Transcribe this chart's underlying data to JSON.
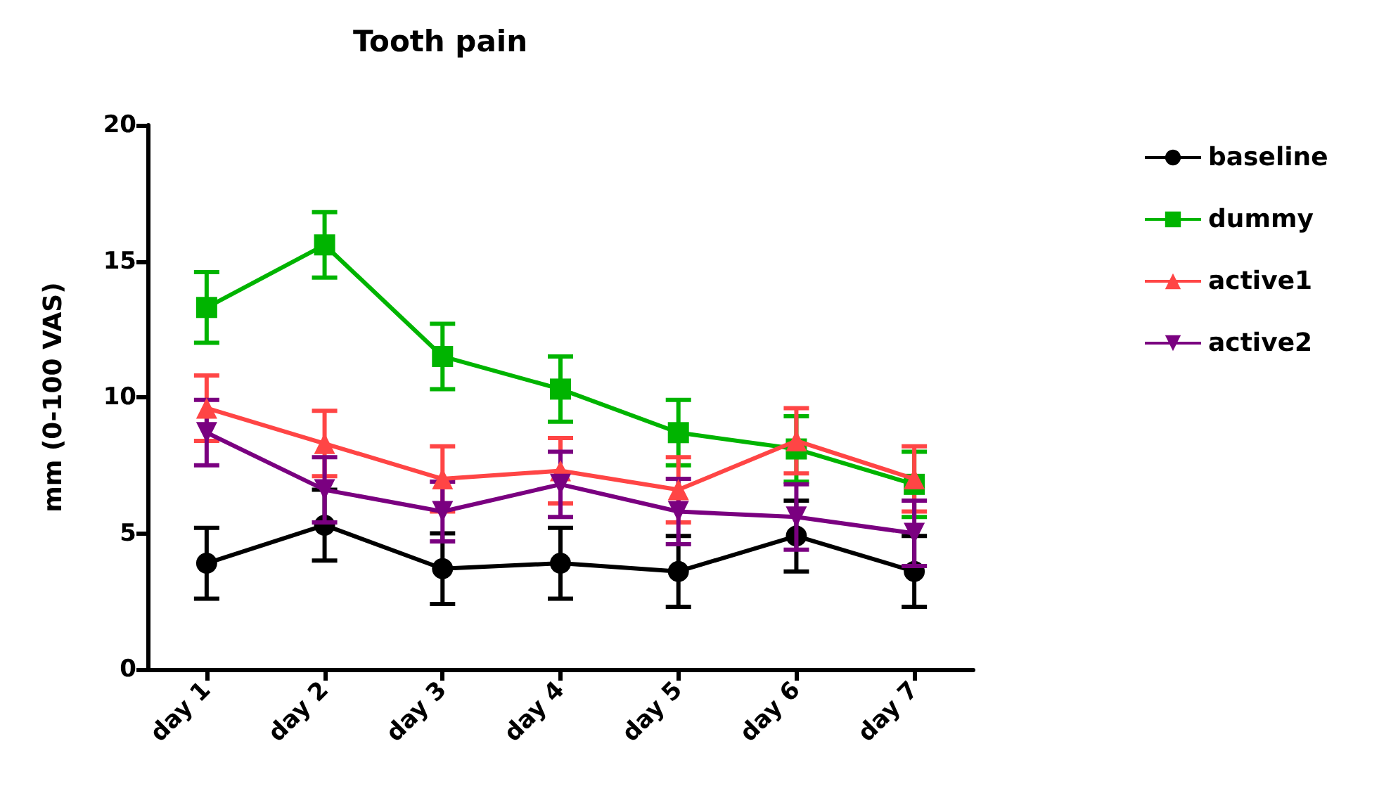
{
  "chart_data": {
    "type": "line",
    "title": "Tooth pain",
    "ylabel": "mm (0-100 VAS)",
    "categories": [
      "day 1",
      "day 2",
      "day 3",
      "day 4",
      "day 5",
      "day 6",
      "day 7"
    ],
    "series": [
      {
        "name": "baseline",
        "color": "#000000",
        "marker": "circle",
        "values": [
          3.9,
          5.3,
          3.7,
          3.9,
          3.6,
          4.9,
          3.6
        ],
        "errors": [
          1.3,
          1.3,
          1.3,
          1.3,
          1.3,
          1.3,
          1.3
        ]
      },
      {
        "name": "dummy",
        "color": "#00b400",
        "marker": "square",
        "values": [
          13.3,
          15.6,
          11.5,
          10.3,
          8.7,
          8.1,
          6.8
        ],
        "errors": [
          1.3,
          1.2,
          1.2,
          1.2,
          1.2,
          1.2,
          1.2
        ]
      },
      {
        "name": "active1",
        "color": "#ff4545",
        "marker": "triangle",
        "values": [
          9.6,
          8.3,
          7.0,
          7.3,
          6.6,
          8.4,
          7.0
        ],
        "errors": [
          1.2,
          1.2,
          1.2,
          1.2,
          1.2,
          1.2,
          1.2
        ]
      },
      {
        "name": "active2",
        "color": "#7a0080",
        "marker": "triangle-down",
        "values": [
          8.7,
          6.6,
          5.8,
          6.8,
          5.8,
          5.6,
          5.0
        ],
        "errors": [
          1.2,
          1.2,
          1.1,
          1.2,
          1.2,
          1.2,
          1.2
        ]
      }
    ],
    "ylim": [
      0,
      20
    ],
    "yticks": [
      0,
      5,
      10,
      15,
      20
    ],
    "grid": false,
    "legend": "top right",
    "line_style": "solid"
  }
}
